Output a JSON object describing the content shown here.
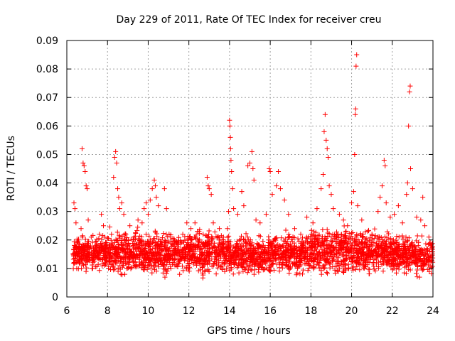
{
  "chart_data": {
    "type": "scatter",
    "title": "Day 229 of 2011, Rate Of TEC Index for receiver creu",
    "xlabel": "GPS time / hours",
    "ylabel": "ROTI / TECUs",
    "xlim": [
      6,
      24
    ],
    "ylim": [
      0,
      0.09
    ],
    "x_ticks": [
      "6",
      "8",
      "10",
      "12",
      "14",
      "16",
      "18",
      "20",
      "22",
      "24"
    ],
    "y_ticks": [
      "0",
      "0.01",
      "0.02",
      "0.03",
      "0.04",
      "0.05",
      "0.06",
      "0.07",
      "0.08",
      "0.09"
    ],
    "grid": true,
    "marker": "plus",
    "color": "#ff0000",
    "series": [
      {
        "points": [
          [
            6.35,
            0.033
          ],
          [
            6.4,
            0.031
          ],
          [
            6.45,
            0.026
          ],
          [
            6.5,
            0.019
          ],
          [
            6.6,
            0.016
          ],
          [
            6.7,
            0.024
          ],
          [
            6.75,
            0.052
          ],
          [
            6.8,
            0.047
          ],
          [
            6.85,
            0.046
          ],
          [
            6.9,
            0.044
          ],
          [
            6.95,
            0.039
          ],
          [
            7.0,
            0.038
          ],
          [
            7.05,
            0.027
          ],
          [
            7.2,
            0.021
          ],
          [
            7.4,
            0.018
          ],
          [
            7.6,
            0.022
          ],
          [
            7.7,
            0.029
          ],
          [
            7.8,
            0.025
          ],
          [
            7.9,
            0.016
          ],
          [
            8.3,
            0.042
          ],
          [
            8.35,
            0.049
          ],
          [
            8.4,
            0.051
          ],
          [
            8.45,
            0.047
          ],
          [
            8.5,
            0.038
          ],
          [
            8.55,
            0.035
          ],
          [
            8.6,
            0.031
          ],
          [
            8.7,
            0.033
          ],
          [
            8.8,
            0.029
          ],
          [
            8.9,
            0.022
          ],
          [
            9.1,
            0.025
          ],
          [
            9.3,
            0.021
          ],
          [
            9.5,
            0.027
          ],
          [
            9.7,
            0.026
          ],
          [
            9.8,
            0.031
          ],
          [
            9.9,
            0.033
          ],
          [
            10.0,
            0.029
          ],
          [
            10.1,
            0.034
          ],
          [
            10.2,
            0.038
          ],
          [
            10.3,
            0.041
          ],
          [
            10.35,
            0.039
          ],
          [
            10.4,
            0.035
          ],
          [
            10.5,
            0.032
          ],
          [
            10.8,
            0.038
          ],
          [
            10.9,
            0.031
          ],
          [
            11.1,
            0.021
          ],
          [
            11.4,
            0.019
          ],
          [
            11.7,
            0.022
          ],
          [
            11.9,
            0.026
          ],
          [
            12.1,
            0.024
          ],
          [
            12.3,
            0.026
          ],
          [
            12.5,
            0.023
          ],
          [
            12.7,
            0.022
          ],
          [
            12.9,
            0.042
          ],
          [
            12.95,
            0.039
          ],
          [
            13.0,
            0.038
          ],
          [
            13.1,
            0.036
          ],
          [
            13.2,
            0.026
          ],
          [
            13.5,
            0.024
          ],
          [
            13.7,
            0.021
          ],
          [
            13.9,
            0.024
          ],
          [
            13.95,
            0.03
          ],
          [
            14.0,
            0.062
          ],
          [
            14.02,
            0.06
          ],
          [
            14.04,
            0.056
          ],
          [
            14.05,
            0.052
          ],
          [
            14.07,
            0.048
          ],
          [
            14.1,
            0.044
          ],
          [
            14.15,
            0.038
          ],
          [
            14.2,
            0.031
          ],
          [
            14.4,
            0.029
          ],
          [
            14.6,
            0.037
          ],
          [
            14.7,
            0.032
          ],
          [
            14.9,
            0.046
          ],
          [
            15.0,
            0.047
          ],
          [
            15.1,
            0.051
          ],
          [
            15.15,
            0.045
          ],
          [
            15.2,
            0.041
          ],
          [
            15.3,
            0.027
          ],
          [
            15.5,
            0.026
          ],
          [
            15.8,
            0.029
          ],
          [
            15.95,
            0.045
          ],
          [
            16.0,
            0.044
          ],
          [
            16.1,
            0.036
          ],
          [
            16.3,
            0.039
          ],
          [
            16.4,
            0.044
          ],
          [
            16.5,
            0.038
          ],
          [
            16.7,
            0.034
          ],
          [
            16.9,
            0.029
          ],
          [
            17.2,
            0.024
          ],
          [
            17.5,
            0.022
          ],
          [
            17.8,
            0.028
          ],
          [
            18.1,
            0.026
          ],
          [
            18.3,
            0.031
          ],
          [
            18.5,
            0.038
          ],
          [
            18.6,
            0.043
          ],
          [
            18.65,
            0.058
          ],
          [
            18.7,
            0.064
          ],
          [
            18.75,
            0.055
          ],
          [
            18.8,
            0.052
          ],
          [
            18.85,
            0.049
          ],
          [
            18.9,
            0.039
          ],
          [
            19.0,
            0.036
          ],
          [
            19.1,
            0.031
          ],
          [
            19.4,
            0.029
          ],
          [
            19.6,
            0.027
          ],
          [
            19.8,
            0.025
          ],
          [
            20.0,
            0.033
          ],
          [
            20.1,
            0.037
          ],
          [
            20.15,
            0.05
          ],
          [
            20.18,
            0.064
          ],
          [
            20.2,
            0.066
          ],
          [
            20.22,
            0.081
          ],
          [
            20.25,
            0.085
          ],
          [
            20.3,
            0.032
          ],
          [
            20.5,
            0.027
          ],
          [
            20.8,
            0.023
          ],
          [
            21.0,
            0.022
          ],
          [
            21.3,
            0.03
          ],
          [
            21.4,
            0.035
          ],
          [
            21.5,
            0.039
          ],
          [
            21.6,
            0.048
          ],
          [
            21.65,
            0.046
          ],
          [
            21.7,
            0.033
          ],
          [
            21.9,
            0.028
          ],
          [
            22.1,
            0.029
          ],
          [
            22.3,
            0.032
          ],
          [
            22.5,
            0.026
          ],
          [
            22.7,
            0.036
          ],
          [
            22.75,
            0.04
          ],
          [
            22.8,
            0.06
          ],
          [
            22.85,
            0.072
          ],
          [
            22.88,
            0.074
          ],
          [
            22.9,
            0.045
          ],
          [
            23.0,
            0.038
          ],
          [
            23.2,
            0.028
          ],
          [
            23.4,
            0.027
          ],
          [
            23.5,
            0.035
          ],
          [
            23.6,
            0.025
          ],
          [
            23.8,
            0.021
          ],
          [
            23.9,
            0.018
          ]
        ],
        "background_bands": [
          {
            "from": 6.3,
            "to": 8.0,
            "low": 0.008,
            "high": 0.021
          },
          {
            "from": 8.0,
            "to": 10.0,
            "low": 0.006,
            "high": 0.023
          },
          {
            "from": 10.0,
            "to": 12.0,
            "low": 0.006,
            "high": 0.022
          },
          {
            "from": 12.0,
            "to": 14.0,
            "low": 0.006,
            "high": 0.023
          },
          {
            "from": 14.0,
            "to": 16.0,
            "low": 0.006,
            "high": 0.021
          },
          {
            "from": 16.0,
            "to": 18.0,
            "low": 0.006,
            "high": 0.022
          },
          {
            "from": 18.0,
            "to": 20.0,
            "low": 0.006,
            "high": 0.024
          },
          {
            "from": 20.0,
            "to": 22.0,
            "low": 0.006,
            "high": 0.023
          },
          {
            "from": 22.0,
            "to": 24.0,
            "low": 0.006,
            "high": 0.021
          }
        ]
      }
    ]
  }
}
